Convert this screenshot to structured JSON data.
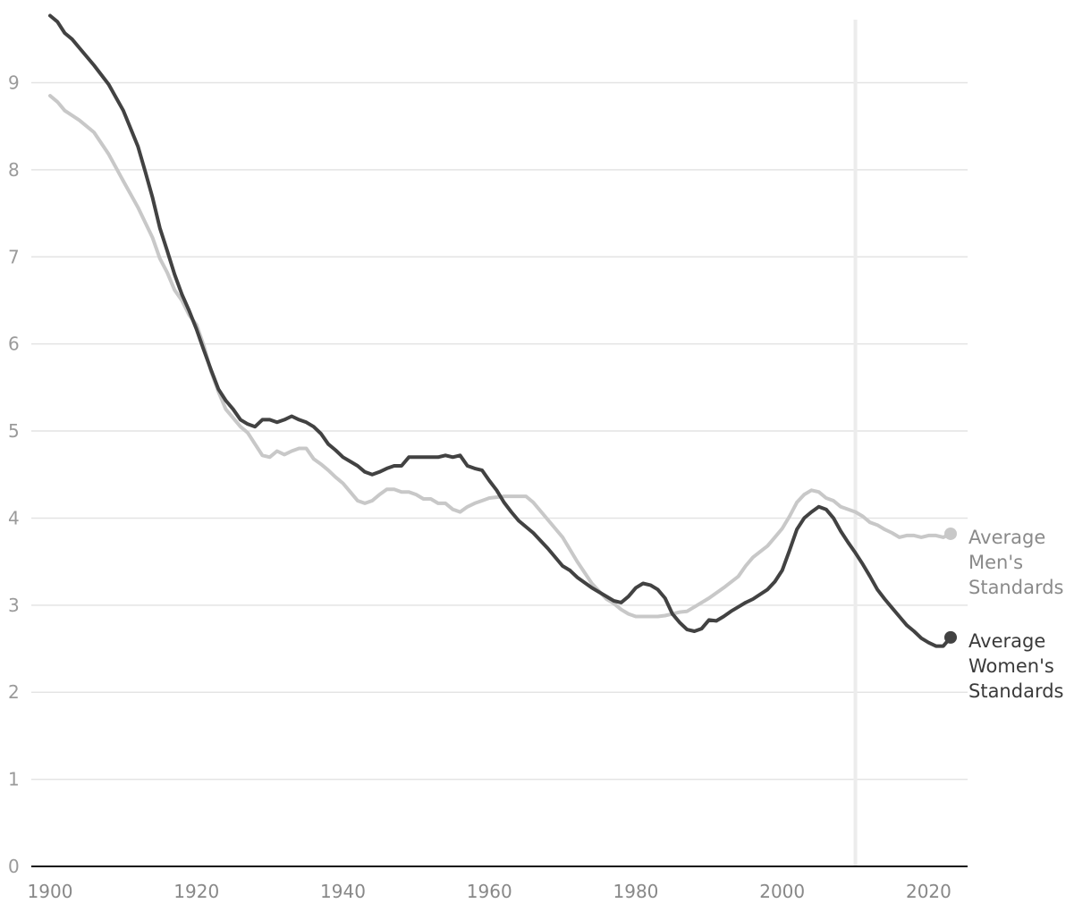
{
  "chart_data": {
    "type": "line",
    "title": "",
    "xlabel": "",
    "ylabel": "",
    "xlim": [
      1900,
      2023
    ],
    "ylim": [
      0,
      9.8
    ],
    "x_ticks": [
      "1900",
      "1920",
      "1940",
      "1960",
      "1980",
      "2000",
      "2020"
    ],
    "y_ticks": [
      "0",
      "1",
      "2",
      "3",
      "4",
      "5",
      "6",
      "7",
      "8",
      "9"
    ],
    "grid": "horizontal",
    "reference_line_x": 2010,
    "series": [
      {
        "key": "men",
        "label_lines": [
          "Average",
          "Men's",
          "Standards"
        ],
        "color": "#c8c8c8",
        "label_color": "#8a8a8a",
        "x": [
          1900,
          1901,
          1902,
          1904,
          1906,
          1908,
          1910,
          1912,
          1914,
          1915,
          1916,
          1917,
          1918,
          1919,
          1920,
          1921,
          1922,
          1923,
          1924,
          1925,
          1926,
          1927,
          1928,
          1929,
          1930,
          1931,
          1932,
          1933,
          1934,
          1935,
          1936,
          1937,
          1938,
          1939,
          1940,
          1941,
          1942,
          1943,
          1944,
          1945,
          1946,
          1947,
          1948,
          1949,
          1950,
          1951,
          1952,
          1953,
          1954,
          1955,
          1956,
          1957,
          1958,
          1959,
          1960,
          1962,
          1964,
          1965,
          1966,
          1968,
          1970,
          1972,
          1974,
          1976,
          1977,
          1978,
          1979,
          1980,
          1981,
          1982,
          1983,
          1984,
          1985,
          1986,
          1987,
          1988,
          1990,
          1992,
          1994,
          1995,
          1996,
          1998,
          1999,
          2000,
          2001,
          2002,
          2003,
          2004,
          2005,
          2006,
          2007,
          2008,
          2010,
          2011,
          2012,
          2013,
          2014,
          2015,
          2016,
          2017,
          2018,
          2019,
          2020,
          2021,
          2022,
          2023
        ],
        "values": [
          8.85,
          8.78,
          8.68,
          8.57,
          8.43,
          8.18,
          7.87,
          7.57,
          7.22,
          6.98,
          6.82,
          6.62,
          6.5,
          6.33,
          6.22,
          5.98,
          5.68,
          5.45,
          5.25,
          5.15,
          5.05,
          4.98,
          4.85,
          4.72,
          4.7,
          4.77,
          4.73,
          4.77,
          4.8,
          4.8,
          4.68,
          4.62,
          4.55,
          4.47,
          4.4,
          4.3,
          4.2,
          4.17,
          4.2,
          4.27,
          4.33,
          4.33,
          4.3,
          4.3,
          4.27,
          4.22,
          4.22,
          4.17,
          4.17,
          4.1,
          4.07,
          4.13,
          4.17,
          4.2,
          4.23,
          4.25,
          4.25,
          4.25,
          4.18,
          3.98,
          3.78,
          3.5,
          3.25,
          3.07,
          3.02,
          2.95,
          2.9,
          2.87,
          2.87,
          2.87,
          2.87,
          2.88,
          2.9,
          2.92,
          2.93,
          2.98,
          3.08,
          3.2,
          3.33,
          3.45,
          3.55,
          3.68,
          3.78,
          3.88,
          4.02,
          4.18,
          4.27,
          4.32,
          4.3,
          4.23,
          4.2,
          4.13,
          4.07,
          4.02,
          3.95,
          3.92,
          3.87,
          3.83,
          3.78,
          3.8,
          3.8,
          3.78,
          3.8,
          3.8,
          3.78,
          3.82
        ]
      },
      {
        "key": "women",
        "label_lines": [
          "Average",
          "Women's",
          "Standards"
        ],
        "color": "#424242",
        "label_color": "#3a3a3a",
        "x": [
          1900,
          1901,
          1902,
          1903,
          1904,
          1906,
          1908,
          1910,
          1912,
          1913,
          1914,
          1915,
          1916,
          1917,
          1918,
          1919,
          1920,
          1921,
          1922,
          1923,
          1924,
          1925,
          1926,
          1927,
          1928,
          1929,
          1930,
          1931,
          1932,
          1933,
          1934,
          1935,
          1936,
          1937,
          1938,
          1939,
          1940,
          1941,
          1942,
          1943,
          1944,
          1945,
          1946,
          1947,
          1948,
          1949,
          1950,
          1951,
          1952,
          1953,
          1954,
          1955,
          1956,
          1957,
          1958,
          1959,
          1960,
          1961,
          1962,
          1963,
          1964,
          1966,
          1968,
          1970,
          1971,
          1972,
          1974,
          1976,
          1977,
          1978,
          1979,
          1980,
          1981,
          1982,
          1983,
          1984,
          1985,
          1986,
          1987,
          1988,
          1989,
          1990,
          1991,
          1992,
          1993,
          1994,
          1995,
          1996,
          1998,
          1999,
          2000,
          2001,
          2002,
          2003,
          2004,
          2005,
          2006,
          2007,
          2008,
          2009,
          2010,
          2011,
          2012,
          2013,
          2014,
          2015,
          2016,
          2017,
          2018,
          2019,
          2020,
          2021,
          2022,
          2023
        ],
        "values": [
          9.77,
          9.7,
          9.57,
          9.5,
          9.4,
          9.2,
          8.98,
          8.68,
          8.27,
          7.98,
          7.68,
          7.33,
          7.07,
          6.8,
          6.57,
          6.38,
          6.17,
          5.93,
          5.7,
          5.48,
          5.35,
          5.25,
          5.13,
          5.08,
          5.05,
          5.13,
          5.13,
          5.1,
          5.13,
          5.17,
          5.13,
          5.1,
          5.05,
          4.97,
          4.85,
          4.78,
          4.7,
          4.65,
          4.6,
          4.53,
          4.5,
          4.53,
          4.57,
          4.6,
          4.6,
          4.7,
          4.7,
          4.7,
          4.7,
          4.7,
          4.72,
          4.7,
          4.72,
          4.6,
          4.57,
          4.55,
          4.43,
          4.32,
          4.18,
          4.07,
          3.97,
          3.83,
          3.65,
          3.45,
          3.4,
          3.32,
          3.2,
          3.1,
          3.05,
          3.03,
          3.1,
          3.2,
          3.25,
          3.23,
          3.18,
          3.08,
          2.9,
          2.8,
          2.72,
          2.7,
          2.73,
          2.83,
          2.82,
          2.87,
          2.93,
          2.98,
          3.03,
          3.07,
          3.18,
          3.27,
          3.4,
          3.63,
          3.87,
          4.0,
          4.07,
          4.13,
          4.1,
          4.0,
          3.85,
          3.72,
          3.6,
          3.47,
          3.33,
          3.18,
          3.07,
          2.97,
          2.87,
          2.77,
          2.7,
          2.62,
          2.57,
          2.53,
          2.53,
          2.63
        ]
      }
    ]
  }
}
